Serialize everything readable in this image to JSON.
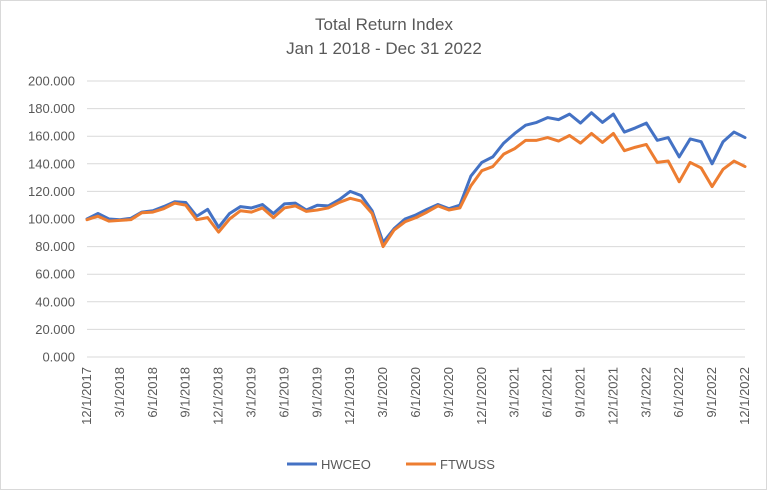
{
  "chart_data": {
    "type": "line",
    "title": "Total Return Index",
    "subtitle": "Jan 1 2018 - Dec 31 2022",
    "xlabel": "",
    "ylabel": "",
    "ylim": [
      0,
      200
    ],
    "y_ticks": [
      "0.000",
      "20.000",
      "40.000",
      "60.000",
      "80.000",
      "100.000",
      "120.000",
      "140.000",
      "160.000",
      "180.000",
      "200.000"
    ],
    "grid": true,
    "legend_position": "bottom",
    "x_tick_labels": [
      "12/1/2017",
      "3/1/2018",
      "6/1/2018",
      "9/1/2018",
      "12/1/2018",
      "3/1/2019",
      "6/1/2019",
      "9/1/2019",
      "12/1/2019",
      "3/1/2020",
      "6/1/2020",
      "9/1/2020",
      "12/1/2020",
      "3/1/2021",
      "6/1/2021",
      "9/1/2021",
      "12/1/2021",
      "3/1/2022",
      "6/1/2022",
      "9/1/2022",
      "12/1/2022"
    ],
    "x": [
      "12/1/2017",
      "1/1/2018",
      "2/1/2018",
      "3/1/2018",
      "4/1/2018",
      "5/1/2018",
      "6/1/2018",
      "7/1/2018",
      "8/1/2018",
      "9/1/2018",
      "10/1/2018",
      "11/1/2018",
      "12/1/2018",
      "1/1/2019",
      "2/1/2019",
      "3/1/2019",
      "4/1/2019",
      "5/1/2019",
      "6/1/2019",
      "7/1/2019",
      "8/1/2019",
      "9/1/2019",
      "10/1/2019",
      "11/1/2019",
      "12/1/2019",
      "1/1/2020",
      "2/1/2020",
      "3/1/2020",
      "4/1/2020",
      "5/1/2020",
      "6/1/2020",
      "7/1/2020",
      "8/1/2020",
      "9/1/2020",
      "10/1/2020",
      "11/1/2020",
      "12/1/2020",
      "1/1/2021",
      "2/1/2021",
      "3/1/2021",
      "4/1/2021",
      "5/1/2021",
      "6/1/2021",
      "7/1/2021",
      "8/1/2021",
      "9/1/2021",
      "10/1/2021",
      "11/1/2021",
      "12/1/2021",
      "1/1/2022",
      "2/1/2022",
      "3/1/2022",
      "4/1/2022",
      "5/1/2022",
      "6/1/2022",
      "7/1/2022",
      "8/1/2022",
      "9/1/2022",
      "10/1/2022",
      "11/1/2022",
      "12/1/2022"
    ],
    "series": [
      {
        "name": "HWCEO",
        "color": "#4472c4",
        "values": [
          100.0,
          104.0,
          100.0,
          99.5,
          100.5,
          105.0,
          106.0,
          109.0,
          112.5,
          112.0,
          102.0,
          107.0,
          94.0,
          104.0,
          109.0,
          108.0,
          110.5,
          104.0,
          111.0,
          111.5,
          106.5,
          110.0,
          109.5,
          114.0,
          120.0,
          117.0,
          106.0,
          83.0,
          93.0,
          100.0,
          103.0,
          107.0,
          110.5,
          107.5,
          110.0,
          131.0,
          141.0,
          145.0,
          155.0,
          162.0,
          168.0,
          170.0,
          173.5,
          172.0,
          176.0,
          169.5,
          177.0,
          170.0,
          176.0,
          163.0,
          166.0,
          169.5,
          157.0,
          159.0,
          145.0,
          158.0,
          156.0,
          140.0,
          156.0,
          163.0,
          159.0
        ]
      },
      {
        "name": "FTWUSS",
        "color": "#ed7d31",
        "values": [
          99.5,
          102.0,
          98.5,
          99.0,
          99.5,
          104.5,
          105.0,
          107.5,
          111.5,
          110.0,
          99.5,
          101.0,
          90.5,
          100.0,
          106.0,
          105.0,
          108.0,
          101.0,
          108.0,
          109.5,
          105.5,
          106.5,
          108.0,
          112.0,
          115.0,
          113.0,
          104.0,
          80.0,
          92.0,
          98.0,
          101.0,
          105.0,
          109.5,
          106.5,
          108.0,
          124.0,
          135.0,
          138.0,
          147.0,
          151.0,
          157.0,
          157.0,
          159.0,
          156.5,
          160.5,
          155.0,
          162.0,
          155.5,
          162.0,
          149.5,
          152.0,
          154.0,
          141.0,
          142.0,
          127.0,
          141.0,
          137.0,
          123.5,
          136.0,
          142.0,
          138.0
        ]
      }
    ]
  }
}
